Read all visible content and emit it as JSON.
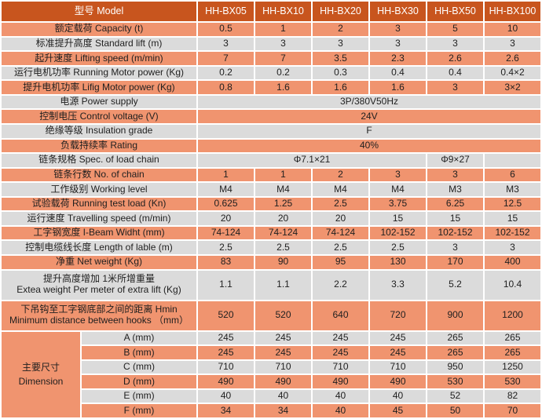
{
  "colors": {
    "header_bg": "#C8551E",
    "salmon_bg": "#F0946F",
    "gray_bg": "#DBDBDB",
    "text": "#1F1F1F",
    "header_text": "#FFFFFF",
    "separator": "#FFFFFF"
  },
  "table": {
    "model_header": {
      "label": "型号  Model",
      "models": [
        "HH-BX05",
        "HH-BX10",
        "HH-BX20",
        "HH-BX30",
        "HH-BX50",
        "HH-BX100"
      ]
    },
    "rows": [
      {
        "kind": "values",
        "shade": "salmon",
        "label": "额定载荷  Capacity (t)",
        "values": [
          "0.5",
          "1",
          "2",
          "3",
          "5",
          "10"
        ]
      },
      {
        "kind": "values",
        "shade": "gray",
        "label": "标准提升高度  Standard  lift (m)",
        "values": [
          "3",
          "3",
          "3",
          "3",
          "3",
          "3"
        ]
      },
      {
        "kind": "values",
        "shade": "salmon",
        "label": "起升速度  Lifting speed (m/min)",
        "values": [
          "7",
          "7",
          "3.5",
          "2.3",
          "2.6",
          "2.6"
        ]
      },
      {
        "kind": "values",
        "shade": "gray",
        "label": "运行电机功率 Running Motor power (Kg)",
        "values": [
          "0.2",
          "0.2",
          "0.3",
          "0.4",
          "0.4",
          "0.4×2"
        ]
      },
      {
        "kind": "values",
        "shade": "salmon",
        "label": "提升电机功率 Lifig Motor power (Kg)",
        "values": [
          "0.8",
          "1.6",
          "1.6",
          "1.6",
          "3",
          "3×2"
        ]
      },
      {
        "kind": "span",
        "shade": "gray",
        "label": "电源  Power supply",
        "value": "3P/380V50Hz"
      },
      {
        "kind": "span",
        "shade": "salmon",
        "label": "控制电压 Control voltage (V)",
        "value": "24V"
      },
      {
        "kind": "span",
        "shade": "gray",
        "label": "绝缘等级  Insulation grade",
        "value": "F"
      },
      {
        "kind": "span",
        "shade": "salmon",
        "label": "负载持续率  Rating",
        "value": "40%"
      },
      {
        "kind": "segments",
        "shade": "gray",
        "label": "链条规格  Spec. of load chain",
        "segments": [
          {
            "text": "Φ7.1×21",
            "span": 4
          },
          {
            "text": "Φ9×27",
            "span": 1
          },
          {
            "text": "",
            "span": 1
          }
        ]
      },
      {
        "kind": "values",
        "shade": "salmon",
        "label": "链条行数  No. of chain",
        "values": [
          "1",
          "1",
          "2",
          "3",
          "3",
          "6"
        ]
      },
      {
        "kind": "values",
        "shade": "gray",
        "label": "工作级别 Working level",
        "values": [
          "M4",
          "M4",
          "M4",
          "M4",
          "M3",
          "M3"
        ]
      },
      {
        "kind": "values",
        "shade": "salmon",
        "label": "试验载荷  Running test load (Kn)",
        "values": [
          "0.625",
          "1.25",
          "2.5",
          "3.75",
          "6.25",
          "12.5"
        ]
      },
      {
        "kind": "values",
        "shade": "gray",
        "label": "运行速度 Travelling speed (m/min)",
        "values": [
          "20",
          "20",
          "20",
          "15",
          "15",
          "15"
        ]
      },
      {
        "kind": "values",
        "shade": "salmon",
        "label": "工字钢宽度 I-Beam Widht (mm)",
        "values": [
          "74-124",
          "74-124",
          "74-124",
          "102-152",
          "102-152",
          "102-152"
        ]
      },
      {
        "kind": "values",
        "shade": "gray",
        "label": "控制电缆线长度  Length of lable (m)",
        "values": [
          "2.5",
          "2.5",
          "2.5",
          "2.5",
          "3",
          "3"
        ]
      },
      {
        "kind": "values",
        "shade": "salmon",
        "label": "净重  Net weight (Kg)",
        "values": [
          "83",
          "90",
          "95",
          "130",
          "170",
          "400"
        ]
      },
      {
        "kind": "values",
        "shade": "gray",
        "tall": true,
        "label_lines": [
          "提升高度增加  1米所增重量",
          "Extea weight Per meter of extra lift (Kg)"
        ],
        "values": [
          "1.1",
          "1.1",
          "2.2",
          "3.3",
          "5.2",
          "10.4"
        ]
      },
      {
        "kind": "values",
        "shade": "salmon",
        "tall": true,
        "label_lines": [
          "下吊钩至工字钢底部之间的距离 Hmin",
          "Minimum distance between hooks （mm）"
        ],
        "values": [
          "520",
          "520",
          "640",
          "720",
          "900",
          "1200"
        ]
      }
    ],
    "dimensions": {
      "group_label_lines": [
        "主要尺寸",
        "Dimension"
      ],
      "rows": [
        {
          "shade": "gray",
          "label": "A (mm)",
          "values": [
            "245",
            "245",
            "245",
            "245",
            "265",
            "265"
          ]
        },
        {
          "shade": "salmon",
          "label": "B (mm)",
          "values": [
            "245",
            "245",
            "245",
            "245",
            "265",
            "265"
          ]
        },
        {
          "shade": "gray",
          "label": "C (mm)",
          "values": [
            "710",
            "710",
            "710",
            "710",
            "950",
            "1250"
          ]
        },
        {
          "shade": "salmon",
          "label": "D (mm)",
          "values": [
            "490",
            "490",
            "490",
            "490",
            "530",
            "530"
          ]
        },
        {
          "shade": "gray",
          "label": "E (mm)",
          "values": [
            "40",
            "40",
            "40",
            "40",
            "52",
            "82"
          ]
        },
        {
          "shade": "salmon",
          "label": "F (mm)",
          "values": [
            "34",
            "34",
            "40",
            "45",
            "50",
            "70"
          ]
        }
      ]
    }
  }
}
